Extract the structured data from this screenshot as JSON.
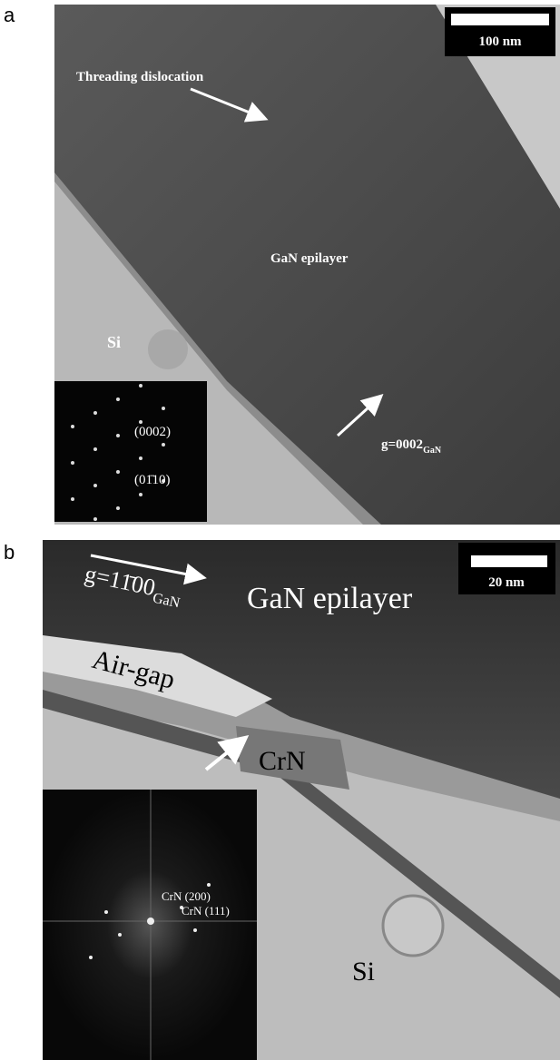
{
  "panels": [
    {
      "label": "a",
      "scale_bar": "100 nm",
      "annotations": {
        "dislocation": "Threading dislocation",
        "epilayer": "GaN epilayer",
        "substrate": "Si",
        "spot_1": "(0002)",
        "spot_2": "(01̄10)",
        "g_vector": {
          "main": "g=0002",
          "sub": "GaN"
        }
      }
    },
    {
      "label": "b",
      "scale_bar": "20 nm",
      "annotations": {
        "epilayer": "GaN epilayer",
        "air_gap": "Air-gap",
        "crn": "CrN",
        "substrate": "Si",
        "spot_1": "CrN (200)",
        "spot_2": "CrN (111)",
        "g_vector": {
          "main": "g=11̄00",
          "sub": "GaN"
        }
      }
    }
  ]
}
